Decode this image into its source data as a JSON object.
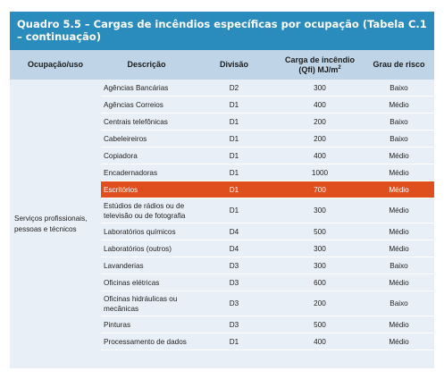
{
  "title": "Quadro 5.5 – Cargas de incêndios específicas por ocupação (Tabela C.1 – continuação)",
  "headers": {
    "occupation": "Ocupação/uso",
    "description": "Descrição",
    "division": "Divisão",
    "load": "Carga de incêndio",
    "load_unit_prefix": "(Qfi) MJ/m",
    "load_unit_exp": "2",
    "risk": "Grau de risco"
  },
  "occupation": "Serviços profissionais, pessoas e técnicos",
  "highlight_color": "#df4f1e",
  "rows": [
    {
      "description": "Agências Bancárias",
      "division": "D2",
      "load": "300",
      "risk": "Baixo"
    },
    {
      "description": "Agências Correios",
      "division": "D1",
      "load": "400",
      "risk": "Médio"
    },
    {
      "description": "Centrais telefônicas",
      "division": "D1",
      "load": "200",
      "risk": "Baixo"
    },
    {
      "description": "Cabeleireiros",
      "division": "D1",
      "load": "200",
      "risk": "Baixo"
    },
    {
      "description": "Copiadora",
      "division": "D1",
      "load": "400",
      "risk": "Médio"
    },
    {
      "description": "Encadernadoras",
      "division": "D1",
      "load": "1000",
      "risk": "Médio"
    },
    {
      "description": "Escritórios",
      "division": "D1",
      "load": "700",
      "risk": "Médio"
    },
    {
      "description": "Estúdios de rádios ou de televisão ou de fotografia",
      "division": "D1",
      "load": "300",
      "risk": "Médio"
    },
    {
      "description": "Laboratórios químicos",
      "division": "D4",
      "load": "500",
      "risk": "Médio"
    },
    {
      "description": "Laboratórios (outros)",
      "division": "D4",
      "load": "300",
      "risk": "Médio"
    },
    {
      "description": "Lavanderias",
      "division": "D3",
      "load": "300",
      "risk": "Baixo"
    },
    {
      "description": "Oficinas elétricas",
      "division": "D3",
      "load": "600",
      "risk": "Médio"
    },
    {
      "description": "Oficinas hidráulicas ou mecânicas",
      "division": "D3",
      "load": "200",
      "risk": "Baixo"
    },
    {
      "description": "Pinturas",
      "division": "D3",
      "load": "500",
      "risk": "Médio"
    },
    {
      "description": "Processamento de dados",
      "division": "D1",
      "load": "400",
      "risk": "Médio"
    }
  ]
}
